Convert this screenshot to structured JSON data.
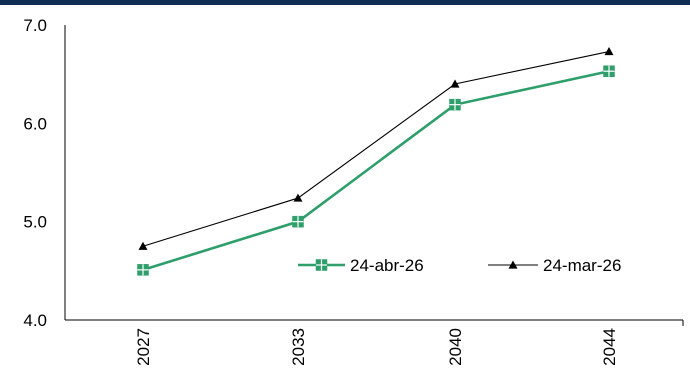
{
  "chart_data": {
    "type": "line",
    "title": "",
    "xlabel": "",
    "ylabel": "",
    "categories": [
      "2027",
      "2033",
      "2040",
      "2044"
    ],
    "ylim": [
      4.0,
      7.0
    ],
    "yticks": [
      "4.0",
      "5.0",
      "6.0",
      "7.0"
    ],
    "grid": false,
    "legend_position": "center-right",
    "series": [
      {
        "name": "24-abr-26",
        "values": [
          4.51,
          5.0,
          6.19,
          6.53
        ],
        "color": "#2e9e6b",
        "marker": "square-plus"
      },
      {
        "name": "24-mar-26",
        "values": [
          4.75,
          5.24,
          6.4,
          6.73
        ],
        "color": "#000000",
        "marker": "triangle"
      }
    ]
  },
  "colors": {
    "header_bar": "#0f2d52"
  }
}
